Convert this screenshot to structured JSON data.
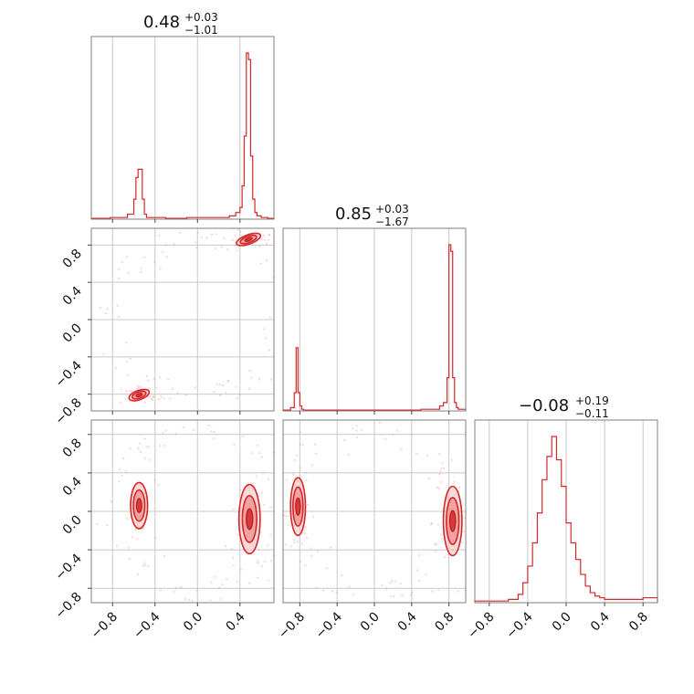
{
  "chart_data": {
    "type": "corner",
    "colors": {
      "series": "#d62728",
      "grid": "#c8c8c8",
      "frame": "#7f7f7f"
    },
    "grid": true,
    "parameters": [
      {
        "title_value": "0.48",
        "title_plus": "+0.03",
        "title_minus": "−1.01"
      },
      {
        "title_value": "0.85",
        "title_plus": "+0.03",
        "title_minus": "−1.67"
      },
      {
        "title_value": "−0.08",
        "title_plus": "+0.19",
        "title_minus": "−0.11"
      }
    ],
    "axes": [
      {
        "range": [
          -1.0,
          0.72
        ],
        "ticks": [
          -0.8,
          -0.4,
          0.0,
          0.4
        ],
        "tick_labels": [
          "−0.8",
          "−0.4",
          "0.0",
          "0.4"
        ]
      },
      {
        "range": [
          -0.98,
          0.98
        ],
        "ticks": [
          -0.8,
          -0.4,
          0.0,
          0.4,
          0.8
        ],
        "tick_labels": [
          "−0.8",
          "−0.4",
          "0.0",
          "0.4",
          "0.8"
        ]
      },
      {
        "range": [
          -0.95,
          0.95
        ],
        "ticks": [
          -0.8,
          -0.4,
          0.0,
          0.4,
          0.8
        ],
        "tick_labels": [
          "−0.8",
          "−0.4",
          "0.0",
          "0.4",
          "0.8"
        ]
      }
    ],
    "histograms": [
      {
        "bins": [
          -1.0,
          -0.82,
          -0.66,
          -0.6,
          -0.58,
          -0.56,
          -0.54,
          -0.52,
          -0.5,
          -0.48,
          -0.44,
          -0.3,
          -0.1,
          0.1,
          0.3,
          0.36,
          0.4,
          0.42,
          0.44,
          0.46,
          0.48,
          0.5,
          0.52,
          0.54,
          0.56,
          0.6,
          0.66,
          0.72
        ],
        "counts": [
          0.005,
          0.01,
          0.03,
          0.12,
          0.25,
          0.3,
          0.3,
          0.12,
          0.03,
          0.01,
          0.01,
          0.005,
          0.01,
          0.01,
          0.02,
          0.04,
          0.07,
          0.2,
          0.5,
          1.0,
          0.96,
          0.38,
          0.12,
          0.04,
          0.02,
          0.01,
          0.005
        ]
      },
      {
        "bins": [
          -0.98,
          -0.9,
          -0.86,
          -0.84,
          -0.82,
          -0.8,
          -0.78,
          -0.76,
          -0.7,
          -0.5,
          -0.2,
          0.1,
          0.3,
          0.5,
          0.7,
          0.74,
          0.78,
          0.8,
          0.82,
          0.84,
          0.86,
          0.88,
          0.9,
          0.98
        ],
        "counts": [
          0.005,
          0.02,
          0.11,
          0.38,
          0.11,
          0.03,
          0.01,
          0.005,
          0.005,
          0.005,
          0.005,
          0.005,
          0.005,
          0.01,
          0.03,
          0.05,
          0.2,
          1.0,
          0.96,
          0.2,
          0.05,
          0.02,
          0.01
        ]
      },
      {
        "bins": [
          -0.95,
          -0.8,
          -0.6,
          -0.5,
          -0.45,
          -0.4,
          -0.35,
          -0.3,
          -0.25,
          -0.2,
          -0.15,
          -0.1,
          -0.05,
          0.0,
          0.05,
          0.1,
          0.15,
          0.2,
          0.25,
          0.3,
          0.35,
          0.4,
          0.5,
          0.6,
          0.7,
          0.8,
          0.95
        ],
        "counts": [
          0.01,
          0.01,
          0.02,
          0.05,
          0.12,
          0.22,
          0.36,
          0.54,
          0.74,
          0.88,
          1.0,
          0.86,
          0.7,
          0.48,
          0.36,
          0.26,
          0.17,
          0.1,
          0.06,
          0.04,
          0.03,
          0.02,
          0.02,
          0.02,
          0.02,
          0.03
        ]
      }
    ],
    "pairs": [
      {
        "x_param": 0,
        "y_param": 1,
        "modes": [
          {
            "cx": 0.48,
            "cy": 0.86,
            "sx": 0.06,
            "sy": 0.025,
            "angle": -20
          },
          {
            "cx": -0.55,
            "cy": -0.81,
            "sx": 0.05,
            "sy": 0.025,
            "angle": -20
          }
        ]
      },
      {
        "x_param": 0,
        "y_param": 2,
        "modes": [
          {
            "cx": -0.55,
            "cy": 0.06,
            "sx": 0.04,
            "sy": 0.12,
            "angle": 0
          },
          {
            "cx": 0.49,
            "cy": -0.08,
            "sx": 0.05,
            "sy": 0.18,
            "angle": 0
          }
        ]
      },
      {
        "x_param": 1,
        "y_param": 2,
        "modes": [
          {
            "cx": -0.82,
            "cy": 0.05,
            "sx": 0.04,
            "sy": 0.15,
            "angle": 0
          },
          {
            "cx": 0.84,
            "cy": -0.1,
            "sx": 0.05,
            "sy": 0.18,
            "angle": 0
          }
        ]
      }
    ]
  }
}
